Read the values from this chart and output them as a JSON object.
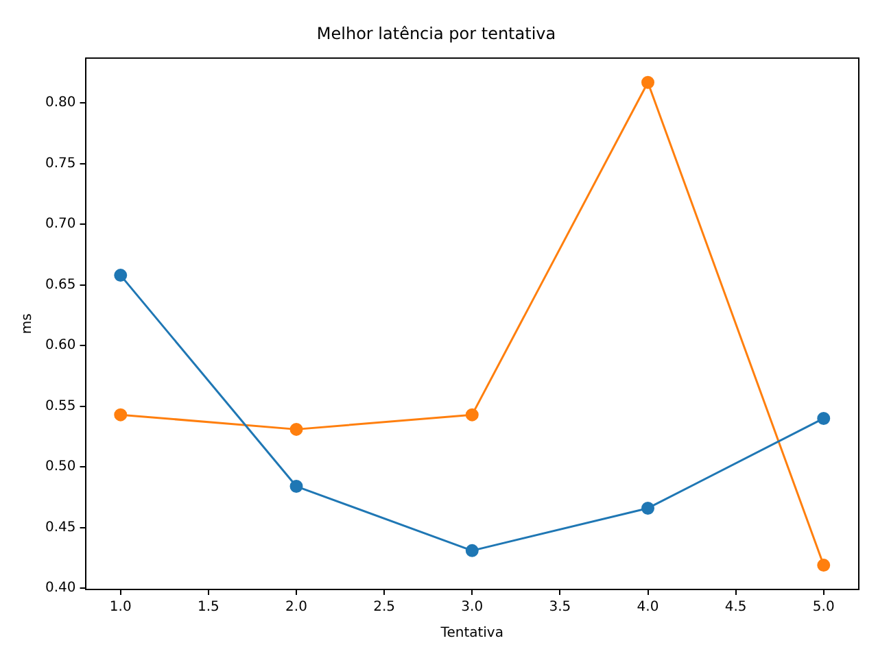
{
  "chart_data": {
    "type": "line",
    "title": "Melhor latência por tentativa",
    "xlabel": "Tentativa",
    "ylabel": "ms",
    "x": [
      1,
      2,
      3,
      4,
      5
    ],
    "series": [
      {
        "color": "#1f77b4",
        "values": [
          0.658,
          0.484,
          0.431,
          0.466,
          0.54
        ]
      },
      {
        "color": "#ff7f0e",
        "values": [
          0.543,
          0.531,
          0.543,
          0.817,
          0.419
        ]
      }
    ],
    "xlim": [
      0.8,
      5.2
    ],
    "xticks": [
      {
        "value": 1,
        "label": "1.0"
      },
      {
        "value": 1.5,
        "label": "1.5"
      },
      {
        "value": 2,
        "label": "2.0"
      },
      {
        "value": 2.5,
        "label": "2.5"
      },
      {
        "value": 3,
        "label": "3.0"
      },
      {
        "value": 3.5,
        "label": "3.5"
      },
      {
        "value": 4,
        "label": "4.0"
      },
      {
        "value": 4.5,
        "label": "4.5"
      },
      {
        "value": 5,
        "label": "5.0"
      }
    ],
    "ylim": [
      0.399,
      0.837
    ],
    "yticks": [
      {
        "value": 0.4,
        "label": "0.40"
      },
      {
        "value": 0.45,
        "label": "0.45"
      },
      {
        "value": 0.5,
        "label": "0.50"
      },
      {
        "value": 0.55,
        "label": "0.55"
      },
      {
        "value": 0.6,
        "label": "0.60"
      },
      {
        "value": 0.65,
        "label": "0.65"
      },
      {
        "value": 0.7,
        "label": "0.70"
      },
      {
        "value": 0.75,
        "label": "0.75"
      },
      {
        "value": 0.8,
        "label": "0.80"
      }
    ],
    "grid": false,
    "legend": false,
    "marker": "circle",
    "line_style": "solid"
  }
}
